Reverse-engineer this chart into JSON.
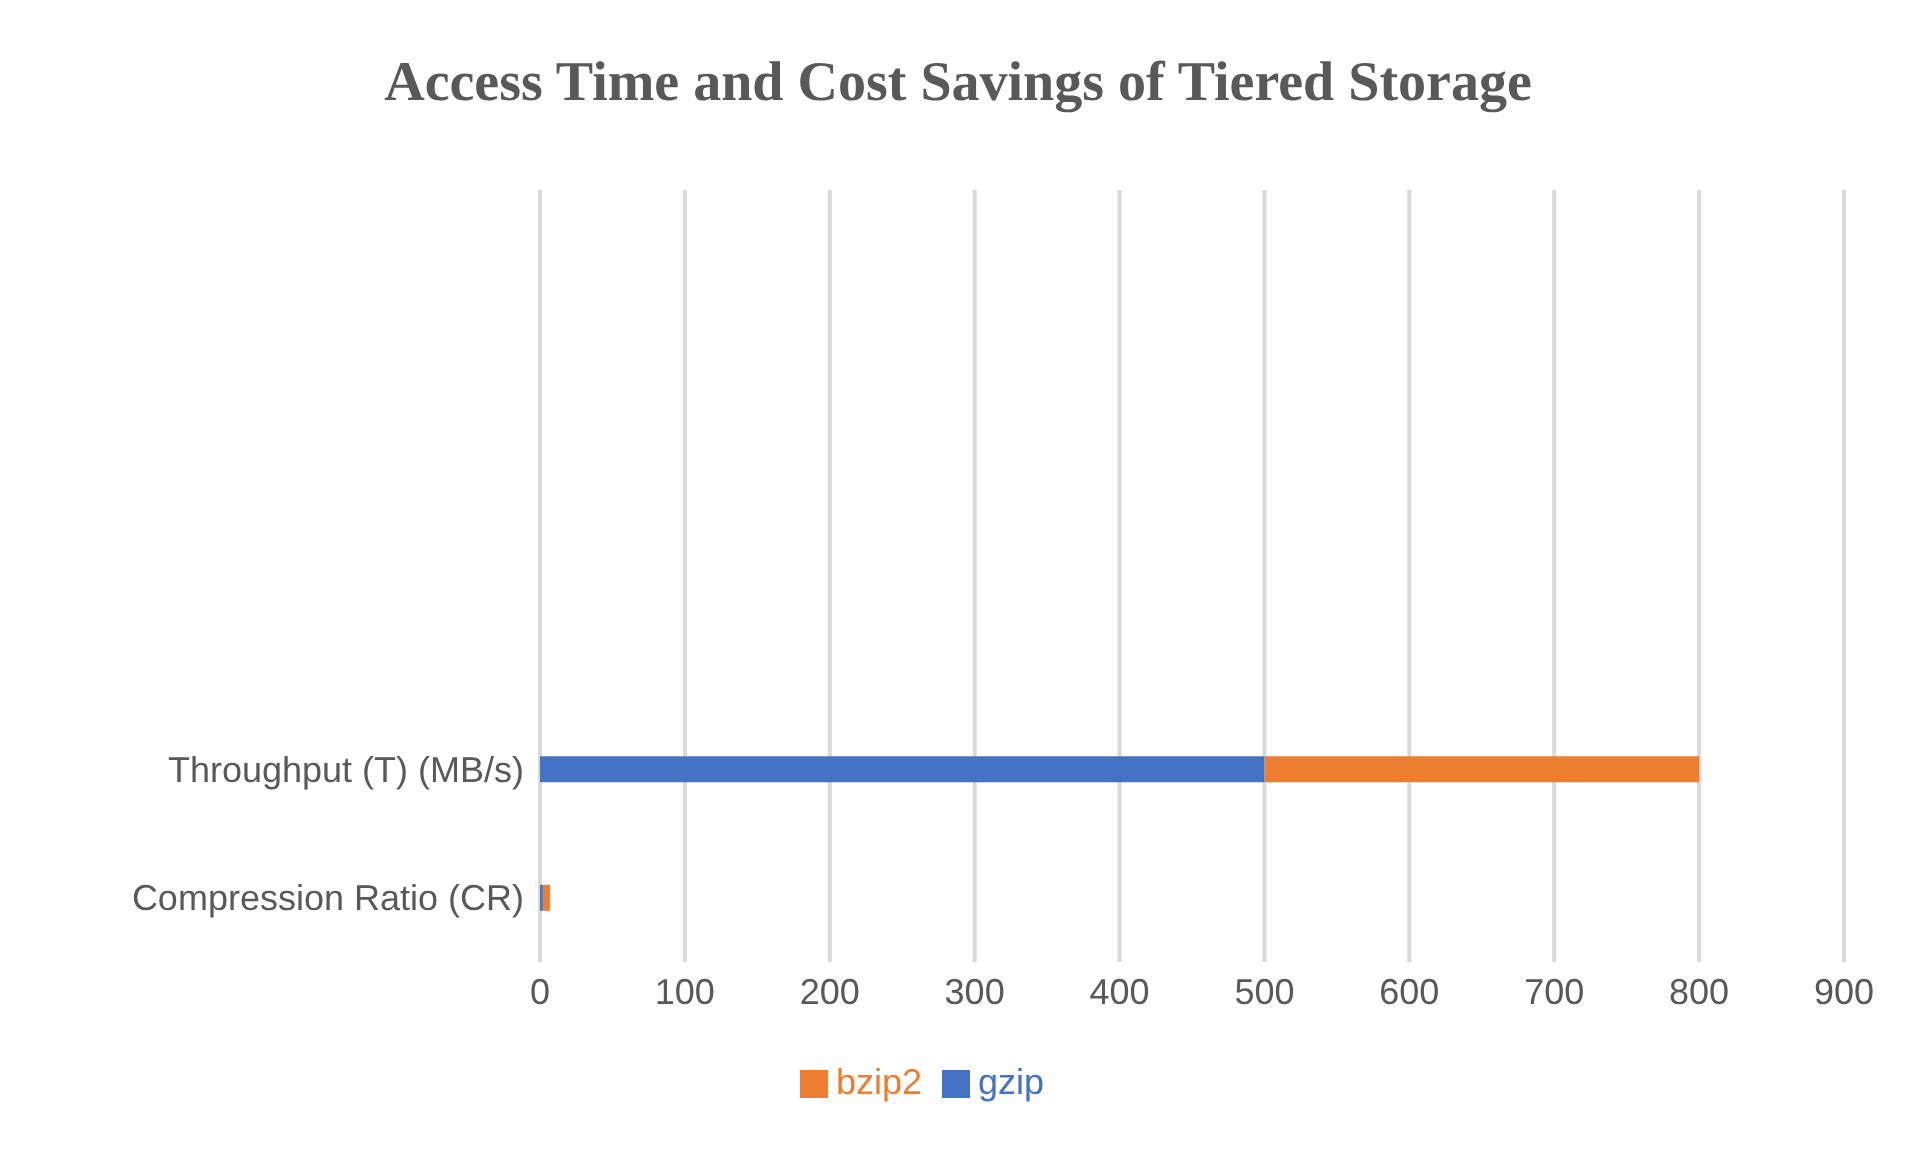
{
  "chart_data": {
    "type": "bar",
    "orientation": "horizontal",
    "stacked": true,
    "title": "Access Time and Cost Savings of Tiered Storage",
    "categories": [
      null,
      null,
      null,
      null,
      "Throughput (T) (MB/s)",
      "Compression Ratio (CR)"
    ],
    "series": [
      {
        "name": "gzip",
        "color": "#4472c4",
        "values": [
          null,
          null,
          null,
          null,
          500,
          2
        ]
      },
      {
        "name": "bzip2",
        "color": "#ed7d31",
        "values": [
          null,
          null,
          null,
          null,
          300,
          5
        ]
      }
    ],
    "xlim": [
      0,
      900
    ],
    "xticks": [
      0,
      100,
      200,
      300,
      400,
      500,
      600,
      700,
      800,
      900
    ],
    "grid": "x",
    "legend": "bottom"
  }
}
